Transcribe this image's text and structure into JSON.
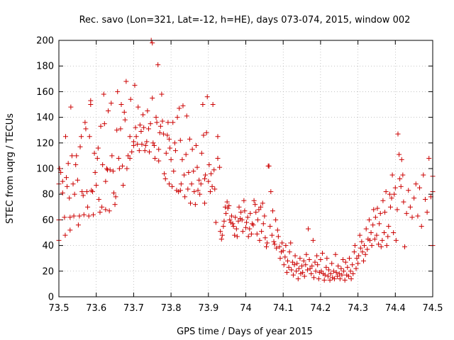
{
  "chart_data": {
    "type": "scatter",
    "title": "Rec. savo (Lon=321, Lat=-12, h=HE), days 073-074, 2015, window 002",
    "xlabel": "GPS time / Days of year 2015",
    "ylabel": "STEC from uqrg / TECUs",
    "xlim": [
      73.5,
      74.5
    ],
    "ylim": [
      0,
      200
    ],
    "xticks": [
      "73.5",
      "73.6",
      "73.7",
      "73.8",
      "73.9",
      "74",
      "74.1",
      "74.2",
      "74.3",
      "74.4",
      "74.5"
    ],
    "yticks": [
      "0",
      "20",
      "40",
      "60",
      "80",
      "100",
      "120",
      "140",
      "160",
      "180",
      "200"
    ],
    "marker": "+",
    "color": "#cc0000",
    "points": [
      [
        73.5,
        44
      ],
      [
        73.5,
        60
      ],
      [
        73.5,
        88
      ],
      [
        73.502,
        100
      ],
      [
        73.505,
        97
      ],
      [
        73.51,
        90
      ],
      [
        73.51,
        81
      ],
      [
        73.515,
        62
      ],
      [
        73.517,
        48
      ],
      [
        73.518,
        125
      ],
      [
        73.52,
        93
      ],
      [
        73.522,
        86
      ],
      [
        73.525,
        104
      ],
      [
        73.528,
        77
      ],
      [
        73.53,
        62
      ],
      [
        73.53,
        52
      ],
      [
        73.532,
        148
      ],
      [
        73.535,
        110
      ],
      [
        73.538,
        88
      ],
      [
        73.54,
        63
      ],
      [
        73.542,
        80
      ],
      [
        73.545,
        103
      ],
      [
        73.547,
        110
      ],
      [
        73.55,
        91
      ],
      [
        73.552,
        56
      ],
      [
        73.555,
        63
      ],
      [
        73.557,
        117
      ],
      [
        73.56,
        125
      ],
      [
        73.562,
        82
      ],
      [
        73.565,
        79
      ],
      [
        73.567,
        64
      ],
      [
        73.57,
        136
      ],
      [
        73.572,
        131
      ],
      [
        73.575,
        82
      ],
      [
        73.577,
        70
      ],
      [
        73.58,
        63
      ],
      [
        73.582,
        125
      ],
      [
        73.585,
        150
      ],
      [
        73.585,
        153
      ],
      [
        73.587,
        83
      ],
      [
        73.59,
        82
      ],
      [
        73.592,
        64
      ],
      [
        73.595,
        112
      ],
      [
        73.597,
        97
      ],
      [
        73.6,
        87
      ],
      [
        73.603,
        108
      ],
      [
        73.605,
        116
      ],
      [
        73.607,
        76
      ],
      [
        73.61,
        66
      ],
      [
        73.612,
        133
      ],
      [
        73.615,
        70
      ],
      [
        73.617,
        103
      ],
      [
        73.62,
        158
      ],
      [
        73.622,
        135
      ],
      [
        73.625,
        90
      ],
      [
        73.625,
        68
      ],
      [
        73.628,
        100
      ],
      [
        73.63,
        99
      ],
      [
        73.632,
        145
      ],
      [
        73.635,
        67
      ],
      [
        73.637,
        99
      ],
      [
        73.64,
        151
      ],
      [
        73.642,
        110
      ],
      [
        73.645,
        98
      ],
      [
        73.647,
        81
      ],
      [
        73.65,
        72
      ],
      [
        73.652,
        78
      ],
      [
        73.655,
        130
      ],
      [
        73.657,
        160
      ],
      [
        73.66,
        108
      ],
      [
        73.662,
        100
      ],
      [
        73.665,
        131
      ],
      [
        73.667,
        150
      ],
      [
        73.67,
        102
      ],
      [
        73.672,
        87
      ],
      [
        73.675,
        144
      ],
      [
        73.677,
        138
      ],
      [
        73.68,
        168
      ],
      [
        73.682,
        100
      ],
      [
        73.685,
        110
      ],
      [
        73.69,
        108
      ],
      [
        73.69,
        125
      ],
      [
        73.692,
        154
      ],
      [
        73.695,
        113
      ],
      [
        73.7,
        118
      ],
      [
        73.7,
        121
      ],
      [
        73.703,
        165
      ],
      [
        73.705,
        132
      ],
      [
        73.707,
        125
      ],
      [
        73.71,
        119
      ],
      [
        73.712,
        148
      ],
      [
        73.715,
        114
      ],
      [
        73.717,
        134
      ],
      [
        73.72,
        129
      ],
      [
        73.722,
        119
      ],
      [
        73.725,
        142
      ],
      [
        73.727,
        132
      ],
      [
        73.73,
        114
      ],
      [
        73.732,
        118
      ],
      [
        73.735,
        121
      ],
      [
        73.737,
        145
      ],
      [
        73.74,
        131
      ],
      [
        73.742,
        113
      ],
      [
        73.745,
        135
      ],
      [
        73.747,
        200
      ],
      [
        73.75,
        198
      ],
      [
        73.75,
        155
      ],
      [
        73.752,
        120
      ],
      [
        73.755,
        118
      ],
      [
        73.757,
        108
      ],
      [
        73.76,
        140
      ],
      [
        73.762,
        136
      ],
      [
        73.765,
        181
      ],
      [
        73.767,
        115
      ],
      [
        73.767,
        106
      ],
      [
        73.77,
        128
      ],
      [
        73.772,
        133
      ],
      [
        73.775,
        158
      ],
      [
        73.777,
        137
      ],
      [
        73.78,
        127
      ],
      [
        73.782,
        96
      ],
      [
        73.785,
        92
      ],
      [
        73.787,
        112
      ],
      [
        73.79,
        126
      ],
      [
        73.792,
        136
      ],
      [
        73.795,
        123
      ],
      [
        73.795,
        88
      ],
      [
        73.797,
        116
      ],
      [
        73.8,
        107
      ],
      [
        73.803,
        86
      ],
      [
        73.805,
        136
      ],
      [
        73.807,
        98
      ],
      [
        73.81,
        120
      ],
      [
        73.812,
        114
      ],
      [
        73.815,
        83
      ],
      [
        73.817,
        140
      ],
      [
        73.82,
        82
      ],
      [
        73.822,
        147
      ],
      [
        73.825,
        122
      ],
      [
        73.825,
        83
      ],
      [
        73.827,
        88
      ],
      [
        73.83,
        107
      ],
      [
        73.832,
        149
      ],
      [
        73.835,
        95
      ],
      [
        73.837,
        78
      ],
      [
        73.84,
        111
      ],
      [
        73.842,
        141
      ],
      [
        73.845,
        84
      ],
      [
        73.847,
        97
      ],
      [
        73.85,
        123
      ],
      [
        73.852,
        73
      ],
      [
        73.855,
        88
      ],
      [
        73.857,
        115
      ],
      [
        73.86,
        98
      ],
      [
        73.862,
        82
      ],
      [
        73.865,
        72
      ],
      [
        73.867,
        118
      ],
      [
        73.87,
        101
      ],
      [
        73.872,
        83
      ],
      [
        73.875,
        91
      ],
      [
        73.877,
        80
      ],
      [
        73.88,
        88
      ],
      [
        73.882,
        112
      ],
      [
        73.885,
        150
      ],
      [
        73.887,
        126
      ],
      [
        73.89,
        92
      ],
      [
        73.89,
        73
      ],
      [
        73.892,
        95
      ],
      [
        73.895,
        128
      ],
      [
        73.897,
        156
      ],
      [
        73.9,
        90
      ],
      [
        73.902,
        103
      ],
      [
        73.905,
        82
      ],
      [
        73.907,
        96
      ],
      [
        73.91,
        86
      ],
      [
        73.912,
        150
      ],
      [
        73.915,
        99
      ],
      [
        73.917,
        84
      ],
      [
        73.92,
        58
      ],
      [
        73.925,
        125
      ],
      [
        73.925,
        108
      ],
      [
        73.93,
        101
      ],
      [
        73.932,
        51
      ],
      [
        73.935,
        45
      ],
      [
        73.937,
        48
      ],
      [
        73.94,
        55
      ],
      [
        73.942,
        59
      ],
      [
        73.945,
        70
      ],
      [
        73.947,
        65
      ],
      [
        73.95,
        74
      ],
      [
        73.952,
        69
      ],
      [
        73.955,
        71
      ],
      [
        73.957,
        60
      ],
      [
        73.96,
        58
      ],
      [
        73.962,
        63
      ],
      [
        73.965,
        57
      ],
      [
        73.967,
        55
      ],
      [
        73.97,
        48
      ],
      [
        73.972,
        62
      ],
      [
        73.975,
        53
      ],
      [
        73.977,
        47
      ],
      [
        73.98,
        59
      ],
      [
        73.982,
        70
      ],
      [
        73.985,
        61
      ],
      [
        73.987,
        66
      ],
      [
        73.99,
        60
      ],
      [
        73.992,
        51
      ],
      [
        73.995,
        75
      ],
      [
        73.997,
        67
      ],
      [
        74.0,
        54
      ],
      [
        74.002,
        58
      ],
      [
        74.005,
        62
      ],
      [
        74.007,
        47
      ],
      [
        74.01,
        53
      ],
      [
        74.012,
        65
      ],
      [
        74.015,
        49
      ],
      [
        74.017,
        57
      ],
      [
        74.02,
        56
      ],
      [
        74.022,
        75
      ],
      [
        74.025,
        72
      ],
      [
        74.027,
        66
      ],
      [
        74.03,
        49
      ],
      [
        74.032,
        60
      ],
      [
        74.035,
        68
      ],
      [
        74.037,
        44
      ],
      [
        74.04,
        70
      ],
      [
        74.042,
        51
      ],
      [
        74.045,
        73
      ],
      [
        74.047,
        57
      ],
      [
        74.05,
        63
      ],
      [
        74.052,
        46
      ],
      [
        74.055,
        39
      ],
      [
        74.057,
        42
      ],
      [
        74.06,
        102
      ],
      [
        74.062,
        102
      ],
      [
        74.065,
        55
      ],
      [
        74.067,
        82
      ],
      [
        74.07,
        48
      ],
      [
        74.072,
        67
      ],
      [
        74.075,
        43
      ],
      [
        74.077,
        41
      ],
      [
        74.08,
        60
      ],
      [
        74.082,
        38
      ],
      [
        74.085,
        52
      ],
      [
        74.087,
        47
      ],
      [
        74.09,
        39
      ],
      [
        74.092,
        30
      ],
      [
        74.095,
        35
      ],
      [
        74.097,
        42
      ],
      [
        74.1,
        36
      ],
      [
        74.102,
        25
      ],
      [
        74.105,
        31
      ],
      [
        74.107,
        40
      ],
      [
        74.11,
        19
      ],
      [
        74.112,
        28
      ],
      [
        74.115,
        23
      ],
      [
        74.117,
        35
      ],
      [
        74.12,
        42
      ],
      [
        74.122,
        21
      ],
      [
        74.125,
        27
      ],
      [
        74.127,
        17
      ],
      [
        74.13,
        25
      ],
      [
        74.132,
        32
      ],
      [
        74.135,
        20
      ],
      [
        74.137,
        26
      ],
      [
        74.14,
        14
      ],
      [
        74.142,
        22
      ],
      [
        74.145,
        30
      ],
      [
        74.147,
        18
      ],
      [
        74.15,
        24
      ],
      [
        74.152,
        19
      ],
      [
        74.155,
        28
      ],
      [
        74.157,
        16
      ],
      [
        74.16,
        25
      ],
      [
        74.162,
        33
      ],
      [
        74.165,
        21
      ],
      [
        74.167,
        53
      ],
      [
        74.17,
        29
      ],
      [
        74.172,
        22
      ],
      [
        74.175,
        18
      ],
      [
        74.177,
        24
      ],
      [
        74.18,
        44
      ],
      [
        74.182,
        15
      ],
      [
        74.185,
        27
      ],
      [
        74.187,
        20
      ],
      [
        74.19,
        32
      ],
      [
        74.192,
        25
      ],
      [
        74.195,
        14
      ],
      [
        74.197,
        19
      ],
      [
        74.2,
        29
      ],
      [
        74.202,
        20
      ],
      [
        74.205,
        34
      ],
      [
        74.207,
        18
      ],
      [
        74.21,
        13
      ],
      [
        74.212,
        17
      ],
      [
        74.215,
        23
      ],
      [
        74.217,
        30
      ],
      [
        74.22,
        16
      ],
      [
        74.222,
        21
      ],
      [
        74.225,
        13
      ],
      [
        74.227,
        18
      ],
      [
        74.23,
        26
      ],
      [
        74.232,
        15
      ],
      [
        74.235,
        20
      ],
      [
        74.237,
        14
      ],
      [
        74.24,
        33
      ],
      [
        74.242,
        19
      ],
      [
        74.245,
        16
      ],
      [
        74.247,
        24
      ],
      [
        74.25,
        18
      ],
      [
        74.252,
        14
      ],
      [
        74.255,
        22
      ],
      [
        74.257,
        17
      ],
      [
        74.26,
        29
      ],
      [
        74.262,
        20
      ],
      [
        74.265,
        13
      ],
      [
        74.267,
        27
      ],
      [
        74.27,
        17
      ],
      [
        74.272,
        23
      ],
      [
        74.275,
        16
      ],
      [
        74.277,
        30
      ],
      [
        74.28,
        20
      ],
      [
        74.282,
        14
      ],
      [
        74.285,
        25
      ],
      [
        74.287,
        18
      ],
      [
        74.29,
        35
      ],
      [
        74.292,
        40
      ],
      [
        74.295,
        22
      ],
      [
        74.297,
        30
      ],
      [
        74.3,
        26
      ],
      [
        74.302,
        32
      ],
      [
        74.305,
        48
      ],
      [
        74.307,
        38
      ],
      [
        74.31,
        43
      ],
      [
        74.312,
        35
      ],
      [
        74.315,
        28
      ],
      [
        74.317,
        40
      ],
      [
        74.32,
        33
      ],
      [
        74.322,
        53
      ],
      [
        74.325,
        37
      ],
      [
        74.327,
        45
      ],
      [
        74.33,
        60
      ],
      [
        74.332,
        44
      ],
      [
        74.335,
        50
      ],
      [
        74.337,
        40
      ],
      [
        74.34,
        56
      ],
      [
        74.342,
        68
      ],
      [
        74.345,
        45
      ],
      [
        74.347,
        62
      ],
      [
        74.35,
        48
      ],
      [
        74.352,
        69
      ],
      [
        74.355,
        41
      ],
      [
        74.357,
        57
      ],
      [
        74.36,
        65
      ],
      [
        74.362,
        39
      ],
      [
        74.365,
        44
      ],
      [
        74.367,
        75
      ],
      [
        74.37,
        50
      ],
      [
        74.372,
        66
      ],
      [
        74.375,
        82
      ],
      [
        74.377,
        40
      ],
      [
        74.38,
        47
      ],
      [
        74.382,
        55
      ],
      [
        74.385,
        80
      ],
      [
        74.387,
        70
      ],
      [
        74.39,
        77
      ],
      [
        74.392,
        95
      ],
      [
        74.395,
        50
      ],
      [
        74.397,
        80
      ],
      [
        74.4,
        85
      ],
      [
        74.402,
        44
      ],
      [
        74.405,
        68
      ],
      [
        74.407,
        127
      ],
      [
        74.41,
        111
      ],
      [
        74.412,
        92
      ],
      [
        74.415,
        86
      ],
      [
        74.417,
        107
      ],
      [
        74.42,
        95
      ],
      [
        74.422,
        74
      ],
      [
        74.425,
        39
      ],
      [
        74.43,
        65
      ],
      [
        74.435,
        83
      ],
      [
        74.44,
        70
      ],
      [
        74.445,
        62
      ],
      [
        74.45,
        77
      ],
      [
        74.455,
        88
      ],
      [
        74.46,
        63
      ],
      [
        74.465,
        85
      ],
      [
        74.47,
        55
      ],
      [
        74.475,
        95
      ],
      [
        74.48,
        76
      ],
      [
        74.485,
        66
      ],
      [
        74.49,
        108
      ],
      [
        74.495,
        78
      ],
      [
        74.5,
        94
      ],
      [
        74.5,
        82
      ],
      [
        74.5,
        40
      ]
    ]
  }
}
